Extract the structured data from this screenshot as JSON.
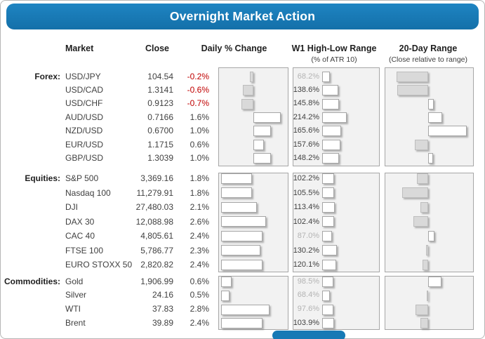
{
  "banner": {
    "title": "Overnight Market Action"
  },
  "columns": {
    "market": "Market",
    "close": "Close",
    "daily": "Daily % Change",
    "w1": "W1 High-Low Range",
    "w1_sub": "(% of ATR 10)",
    "d20": "20-Day Range",
    "d20_sub": "(Close relative to range)"
  },
  "styles": {
    "banner_blue": "#1779b5",
    "negative_red": "#c00000",
    "bar_gray_fill": "#d9d9d9",
    "bar_white_fill": "#ffffff",
    "panel_bg": "#f2f2f2",
    "muted_label_gray": "#b3b3b3"
  },
  "chart_data": {
    "type": "table",
    "title": "Overnight Market Action",
    "notes": "Each group has three embedded bar charts: Daily % Change (gray bars left of axis = negative, white bars right = positive), W1 High-Low Range as % of ATR 10 (labels under 100% shown muted gray), and 20-Day Range showing close relative to range (gray bar extending left of midpoint = lower half, white bar extending right = upper half; range20_bar is the signed bar extent in px, est.)",
    "groups": [
      {
        "label": "Forex:",
        "rows": [
          {
            "market": "USD/JPY",
            "close": "104.54",
            "daily_pct": -0.2,
            "daily_label": "-0.2%",
            "w1_atr_pct": 68.2,
            "w1_label": "68.2%",
            "range20_bar": -45
          },
          {
            "market": "USD/CAD",
            "close": "1.3141",
            "daily_pct": -0.6,
            "daily_label": "-0.6%",
            "w1_atr_pct": 138.6,
            "w1_label": "138.6%",
            "range20_bar": -44
          },
          {
            "market": "USD/CHF",
            "close": "0.9123",
            "daily_pct": -0.7,
            "daily_label": "-0.7%",
            "w1_atr_pct": 145.8,
            "w1_label": "145.8%",
            "range20_bar": 8
          },
          {
            "market": "AUD/USD",
            "close": "0.7166",
            "daily_pct": 1.6,
            "daily_label": "1.6%",
            "w1_atr_pct": 214.2,
            "w1_label": "214.2%",
            "range20_bar": 20
          },
          {
            "market": "NZD/USD",
            "close": "0.6700",
            "daily_pct": 1.0,
            "daily_label": "1.0%",
            "w1_atr_pct": 165.6,
            "w1_label": "165.6%",
            "range20_bar": 55
          },
          {
            "market": "EUR/USD",
            "close": "1.1715",
            "daily_pct": 0.6,
            "daily_label": "0.6%",
            "w1_atr_pct": 157.6,
            "w1_label": "157.6%",
            "range20_bar": -19
          },
          {
            "market": "GBP/USD",
            "close": "1.3039",
            "daily_pct": 1.0,
            "daily_label": "1.0%",
            "w1_atr_pct": 148.2,
            "w1_label": "148.2%",
            "range20_bar": 7
          }
        ]
      },
      {
        "label": "Equities:",
        "rows": [
          {
            "market": "S&P 500",
            "close": "3,369.16",
            "daily_pct": 1.8,
            "daily_label": "1.8%",
            "w1_atr_pct": 102.2,
            "w1_label": "102.2%",
            "range20_bar": -16
          },
          {
            "market": "Nasdaq 100",
            "close": "11,279.91",
            "daily_pct": 1.8,
            "daily_label": "1.8%",
            "w1_atr_pct": 105.5,
            "w1_label": "105.5%",
            "range20_bar": -37
          },
          {
            "market": "DJI",
            "close": "27,480.03",
            "daily_pct": 2.1,
            "daily_label": "2.1%",
            "w1_atr_pct": 113.4,
            "w1_label": "113.4%",
            "range20_bar": -11
          },
          {
            "market": "DAX 30",
            "close": "12,088.98",
            "daily_pct": 2.6,
            "daily_label": "2.6%",
            "w1_atr_pct": 102.4,
            "w1_label": "102.4%",
            "range20_bar": -21
          },
          {
            "market": "CAC 40",
            "close": "4,805.61",
            "daily_pct": 2.4,
            "daily_label": "2.4%",
            "w1_atr_pct": 87.0,
            "w1_label": "87.0%",
            "range20_bar": 9
          },
          {
            "market": "FTSE 100",
            "close": "5,786.77",
            "daily_pct": 2.3,
            "daily_label": "2.3%",
            "w1_atr_pct": 130.2,
            "w1_label": "130.2%",
            "range20_bar": -3
          },
          {
            "market": "EURO STOXX 50",
            "close": "2,820.82",
            "daily_pct": 2.4,
            "daily_label": "2.4%",
            "w1_atr_pct": 120.1,
            "w1_label": "120.1%",
            "range20_bar": -8
          }
        ]
      },
      {
        "label": "Commodities:",
        "rows": [
          {
            "market": "Gold",
            "close": "1,906.99",
            "daily_pct": 0.6,
            "daily_label": "0.6%",
            "w1_atr_pct": 98.5,
            "w1_label": "98.5%",
            "range20_bar": 19
          },
          {
            "market": "Silver",
            "close": "24.16",
            "daily_pct": 0.5,
            "daily_label": "0.5%",
            "w1_atr_pct": 68.4,
            "w1_label": "68.4%",
            "range20_bar": -2
          },
          {
            "market": "WTI",
            "close": "37.83",
            "daily_pct": 2.8,
            "daily_label": "2.8%",
            "w1_atr_pct": 97.6,
            "w1_label": "97.6%",
            "range20_bar": -18
          },
          {
            "market": "Brent",
            "close": "39.89",
            "daily_pct": 2.4,
            "daily_label": "2.4%",
            "w1_atr_pct": 103.9,
            "w1_label": "103.9%",
            "range20_bar": -11
          }
        ]
      }
    ]
  }
}
